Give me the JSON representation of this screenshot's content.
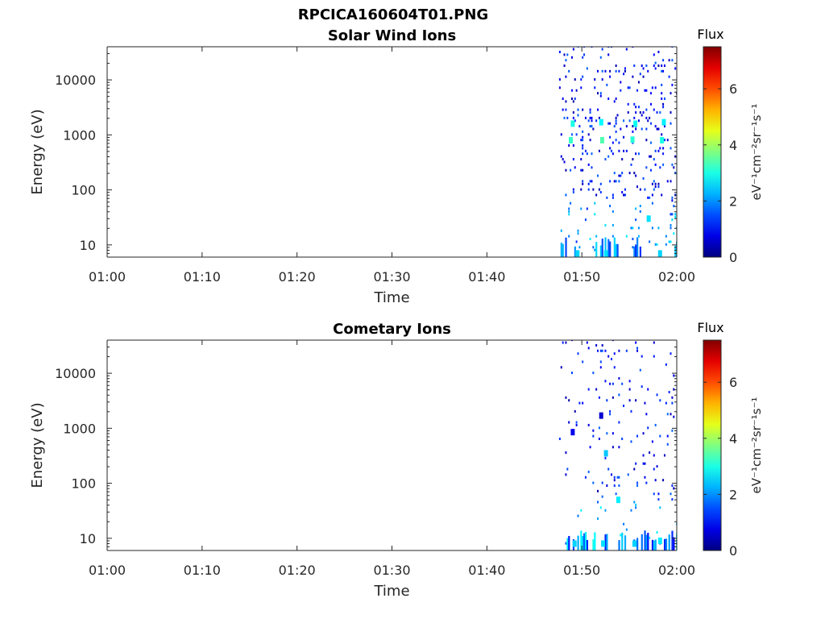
{
  "title": "RPCICA160604T01.PNG",
  "colorbar": {
    "label": "Flux",
    "units": "eV⁻¹cm⁻²sr⁻¹s⁻¹",
    "ticks": [
      "0",
      "2",
      "4",
      "6"
    ],
    "range": [
      0,
      7.5
    ],
    "colormap": "jet"
  },
  "chart_data": [
    {
      "type": "heatmap",
      "title": "Solar Wind Ions",
      "xlabel": "Time",
      "ylabel": "Energy (eV)",
      "x_ticks": [
        "01:00",
        "01:10",
        "01:20",
        "01:30",
        "01:40",
        "01:50",
        "02:00"
      ],
      "xlim": [
        "01:00",
        "02:00"
      ],
      "y_ticks": [
        "10",
        "100",
        "1000",
        "10000"
      ],
      "ylim": [
        6,
        40000
      ],
      "yscale": "log",
      "data_start": "01:47.6",
      "cells": [
        {
          "t": "01:48.8",
          "e": 800,
          "flux": 3.2
        },
        {
          "t": "01:49.0",
          "e": 1600,
          "flux": 3.0
        },
        {
          "t": "01:52.1",
          "e": 800,
          "flux": 3.4
        },
        {
          "t": "01:52.0",
          "e": 1700,
          "flux": 2.8
        },
        {
          "t": "01:55.3",
          "e": 820,
          "flux": 3.1
        },
        {
          "t": "01:55.6",
          "e": 1600,
          "flux": 2.9
        },
        {
          "t": "01:58.4",
          "e": 800,
          "flux": 3.0
        },
        {
          "t": "01:58.6",
          "e": 1700,
          "flux": 2.7
        },
        {
          "t": "01:49.5",
          "e": 7,
          "flux": 2.5
        },
        {
          "t": "01:52.5",
          "e": 7,
          "flux": 2.6
        },
        {
          "t": "01:58.2",
          "e": 7,
          "flux": 2.5
        },
        {
          "t": "01:57.0",
          "e": 30,
          "flux": 2.6
        }
      ]
    },
    {
      "type": "heatmap",
      "title": "Cometary Ions",
      "xlabel": "Time",
      "ylabel": "Energy (eV)",
      "x_ticks": [
        "01:00",
        "01:10",
        "01:20",
        "01:30",
        "01:40",
        "01:50",
        "02:00"
      ],
      "xlim": [
        "01:00",
        "02:00"
      ],
      "y_ticks": [
        "10",
        "100",
        "1000",
        "10000"
      ],
      "ylim": [
        6,
        40000
      ],
      "yscale": "log",
      "data_start": "01:47.6",
      "cells": [
        {
          "t": "01:52.0",
          "e": 1700,
          "flux": 0.6
        },
        {
          "t": "01:49.0",
          "e": 850,
          "flux": 0.8
        },
        {
          "t": "01:52.5",
          "e": 350,
          "flux": 2.4
        },
        {
          "t": "01:49.2",
          "e": 8,
          "flux": 2.5
        },
        {
          "t": "01:52.2",
          "e": 8,
          "flux": 2.6
        },
        {
          "t": "01:55.5",
          "e": 8,
          "flux": 2.5
        },
        {
          "t": "01:58.2",
          "e": 9,
          "flux": 2.7
        },
        {
          "t": "01:53.8",
          "e": 50,
          "flux": 2.7
        }
      ]
    }
  ]
}
